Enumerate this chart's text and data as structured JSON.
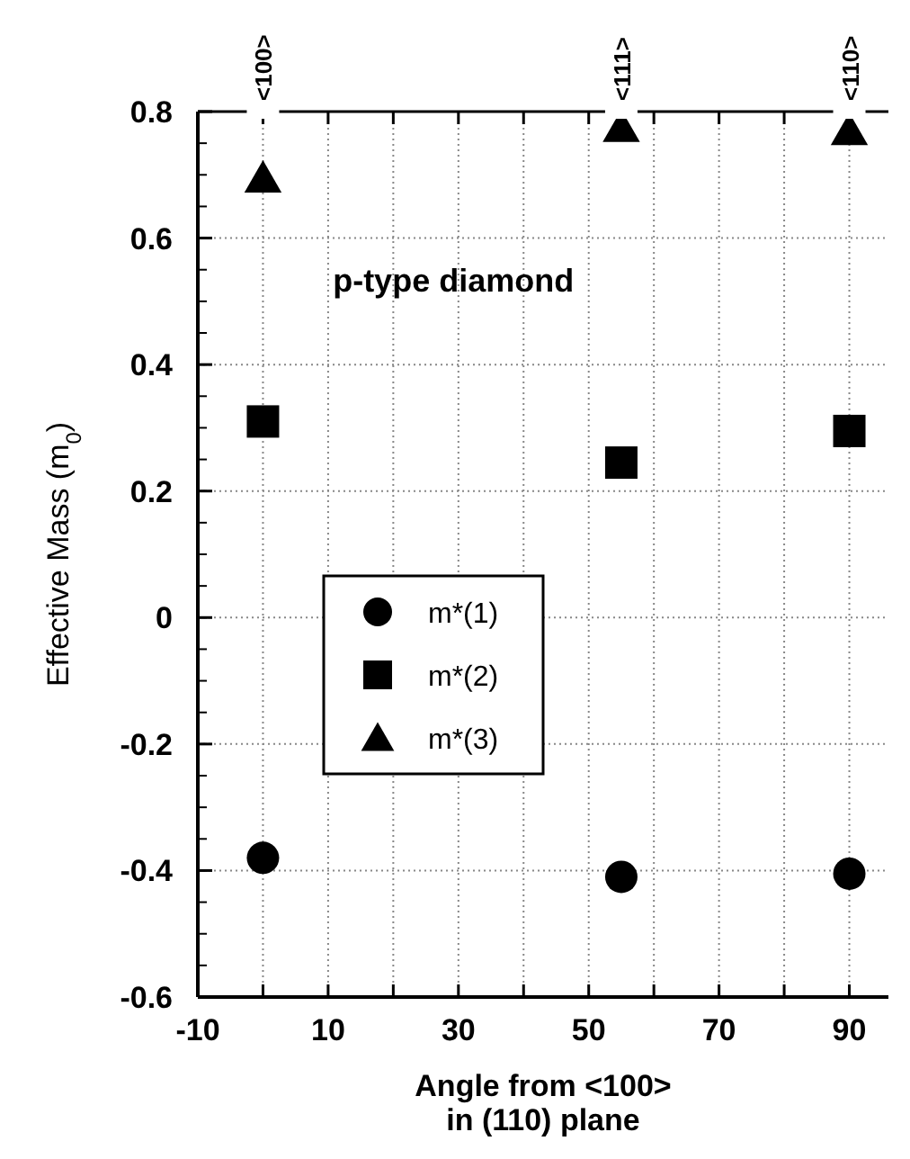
{
  "chart_data": {
    "type": "scatter",
    "xlabel": "Angle from <100>\nin (110) plane",
    "ylabel": "Effective Mass (m$_{0}$)",
    "x": [
      0,
      55,
      90
    ],
    "series": [
      {
        "name": "m*(1)",
        "color": "#000000",
        "marker": "circle",
        "values": [
          -0.38,
          -0.41,
          -0.405
        ]
      },
      {
        "name": "m*(2)",
        "color": "#000000",
        "marker": "square",
        "values": [
          0.31,
          0.245,
          0.295
        ]
      },
      {
        "name": "m*(3)",
        "color": "#000000",
        "marker": "triangle",
        "values": [
          0.695,
          0.775,
          0.77
        ]
      }
    ],
    "xlim": [
      -10,
      96
    ],
    "xticks": [
      -10,
      {
        "value": 0,
        "label": null
      },
      10,
      {
        "value": 20,
        "label": null
      },
      30,
      {
        "value": 40,
        "label": null
      },
      50,
      {
        "value": 60,
        "label": null
      },
      70,
      {
        "value": 80,
        "label": null
      },
      90
    ],
    "ylim": [
      -0.6,
      0.8
    ],
    "yticks": [
      -0.6,
      -0.4,
      -0.2,
      0,
      0.2,
      0.4,
      0.6,
      0.8
    ],
    "grid": true,
    "legend": "left",
    "annotations": [
      "p-type diamond",
      {
        "text": "<100>",
        "x": 0,
        "y": 0.8
      },
      {
        "text": "<111>",
        "x": 55,
        "y": 0.8
      },
      {
        "text": "<110>",
        "x": 90,
        "y": 0.8
      }
    ]
  }
}
